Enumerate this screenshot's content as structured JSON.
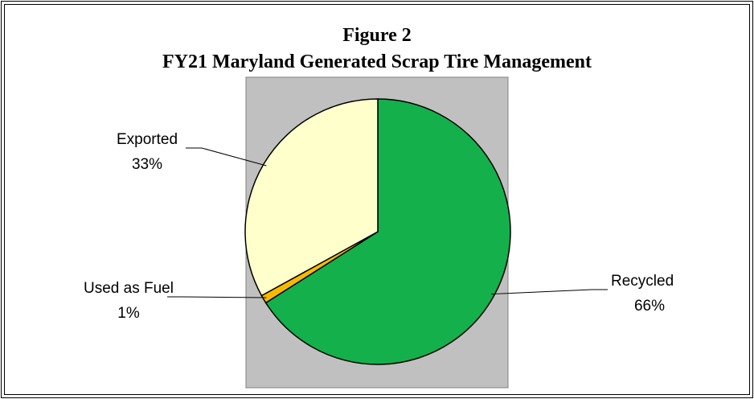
{
  "chart_data": {
    "type": "pie",
    "title": "Figure 2",
    "subtitle": "FY21 Maryland Generated Scrap Tire Management",
    "categories": [
      "Recycled",
      "Used as Fuel",
      "Exported"
    ],
    "values": [
      66,
      1,
      33
    ],
    "value_labels": [
      "66%",
      "1%",
      "33%"
    ],
    "colors": [
      "#14b04b",
      "#f7b900",
      "#ffffcc"
    ]
  }
}
